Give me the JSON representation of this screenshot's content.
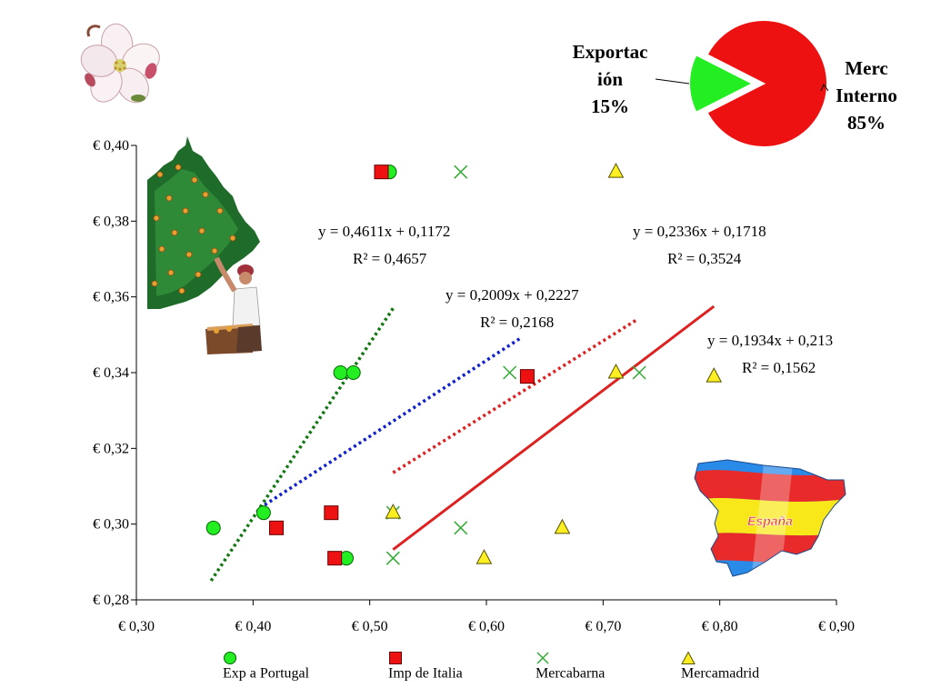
{
  "chart_data": [
    {
      "type": "pie",
      "slices": [
        {
          "label_lines": [
            "Exportac",
            "ión",
            "15%"
          ],
          "value": 15,
          "color": "#22ee22",
          "exploded": true
        },
        {
          "label_lines": [
            "Merc",
            "Interno",
            "85%"
          ],
          "value": 85,
          "color": "#ee1111",
          "exploded": false
        }
      ]
    },
    {
      "type": "scatter",
      "x_ticks": [
        "€ 0,30",
        "€ 0,40",
        "€ 0,50",
        "€ 0,60",
        "€ 0,70",
        "€ 0,80",
        "€ 0,90"
      ],
      "y_ticks": [
        "€ 0,28",
        "€ 0,30",
        "€ 0,32",
        "€ 0,34",
        "€ 0,36",
        "€ 0,38",
        "€ 0,40"
      ],
      "xlim": [
        0.3,
        0.9
      ],
      "ylim": [
        0.28,
        0.4
      ],
      "legend_position": "bottom",
      "series": [
        {
          "name": "Exp a Portugal",
          "marker": "circle",
          "color": "#22ee22",
          "points": [
            [
              0.366,
              0.299
            ],
            [
              0.409,
              0.303
            ],
            [
              0.475,
              0.34
            ],
            [
              0.486,
              0.34
            ],
            [
              0.48,
              0.291
            ],
            [
              0.517,
              0.393
            ]
          ],
          "trendline": {
            "color": "#117711",
            "style": "dotted",
            "x_range": [
              0.364,
              0.52
            ],
            "equation": "y = 0,4611x + 0,1172",
            "r2_label": "R² = 0,4657"
          }
        },
        {
          "name": "Imp de Italia",
          "marker": "square",
          "color": "#ee1111",
          "points": [
            [
              0.42,
              0.299
            ],
            [
              0.467,
              0.303
            ],
            [
              0.47,
              0.291
            ],
            [
              0.635,
              0.339
            ],
            [
              0.51,
              0.393
            ]
          ],
          "trendline": {
            "color": "#dd2222",
            "style": "dotted",
            "x_range": [
              0.52,
              0.73
            ],
            "equation": "y = 0,1934x + 0,213",
            "r2_label": "R² = 0,1562"
          }
        },
        {
          "name": "Mercabarna",
          "marker": "x",
          "color": "#33aa33",
          "points": [
            [
              0.52,
              0.303
            ],
            [
              0.52,
              0.291
            ],
            [
              0.578,
              0.299
            ],
            [
              0.62,
              0.34
            ],
            [
              0.731,
              0.34
            ],
            [
              0.578,
              0.393
            ]
          ],
          "trendline": {
            "color": "#1122cc",
            "style": "dotted",
            "x_range": [
              0.41,
              0.63
            ],
            "equation": "y = 0,2009x + 0,2227",
            "r2_label": "R² = 0,2168"
          }
        },
        {
          "name": "Mercamadrid",
          "marker": "triangle",
          "color": "#ffee22",
          "points": [
            [
              0.52,
              0.303
            ],
            [
              0.598,
              0.291
            ],
            [
              0.665,
              0.299
            ],
            [
              0.711,
              0.34
            ],
            [
              0.795,
              0.339
            ],
            [
              0.711,
              0.393
            ]
          ],
          "trendline": {
            "color": "#dd2222",
            "style": "solid",
            "x_range": [
              0.52,
              0.795
            ],
            "equation": "y = 0,2336x + 0,1718",
            "r2_label": "R² = 0,3524"
          }
        }
      ]
    }
  ],
  "images": {
    "flower_icon": "apple-blossom-icon",
    "tree_icon": "farmer-picking-fruit-icon",
    "map_icon": "spain-flag-map-icon",
    "map_text": "España"
  }
}
